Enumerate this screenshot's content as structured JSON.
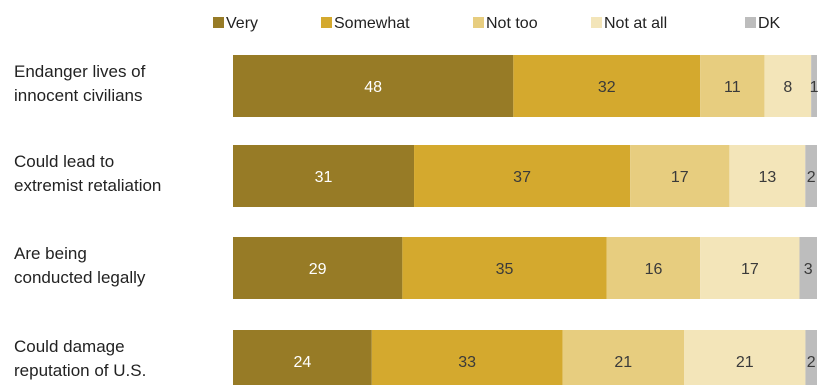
{
  "chart_data": {
    "type": "bar",
    "orientation": "horizontal",
    "stacked": true,
    "legend_position": "top",
    "categories": [
      [
        "Endanger lives of",
        "innocent civilians"
      ],
      [
        "Could lead to",
        "extremist retaliation"
      ],
      [
        "Are being",
        "conducted legally"
      ],
      [
        "Could damage",
        "reputation of U.S."
      ]
    ],
    "series": [
      {
        "name": "Very",
        "color": "#977b26",
        "label_color": "#ffffff",
        "values": [
          48,
          31,
          29,
          24
        ]
      },
      {
        "name": "Somewhat",
        "color": "#d4a92e",
        "label_color": "#3a3a3a",
        "values": [
          32,
          37,
          35,
          33
        ]
      },
      {
        "name": "Not too",
        "color": "#e7cd7f",
        "label_color": "#3a3a3a",
        "values": [
          11,
          17,
          16,
          21
        ]
      },
      {
        "name": "Not at all",
        "color": "#f3e5b9",
        "label_color": "#3a3a3a",
        "values": [
          8,
          13,
          17,
          21
        ]
      },
      {
        "name": "DK",
        "color": "#bdbdbd",
        "label_color": "#3a3a3a",
        "values": [
          1,
          2,
          3,
          2
        ]
      }
    ]
  }
}
